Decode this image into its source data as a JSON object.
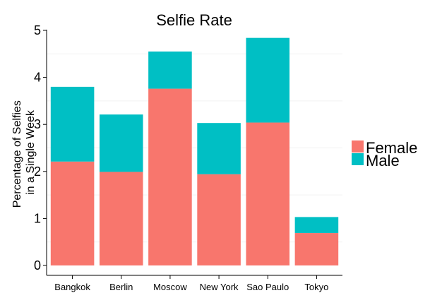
{
  "chart_data": {
    "type": "bar",
    "stacked": true,
    "title": "Selfie Rate",
    "xlabel": "",
    "ylabel": [
      "Percentage of Selfies",
      "in a Single Week"
    ],
    "categories": [
      "Bangkok",
      "Berlin",
      "Moscow",
      "New York",
      "Sao Paulo",
      "Tokyo"
    ],
    "series": [
      {
        "name": "Female",
        "color": "#F8766D",
        "values": [
          2.21,
          1.99,
          3.76,
          1.94,
          3.04,
          0.69
        ]
      },
      {
        "name": "Male",
        "color": "#00BFC4",
        "values": [
          1.59,
          1.22,
          0.79,
          1.09,
          1.8,
          0.34
        ]
      }
    ],
    "ylim": [
      0,
      5
    ],
    "yticks": [
      "0",
      "1",
      "2",
      "3",
      "4",
      "5"
    ],
    "grid": "faint minor horizontal lines",
    "legend_position": "right"
  }
}
